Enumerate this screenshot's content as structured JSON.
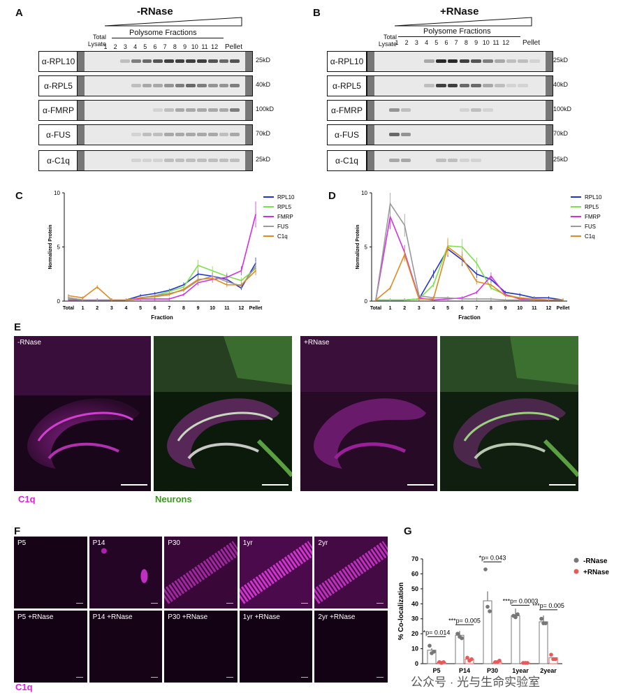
{
  "panels": {
    "A": {
      "letter": "A",
      "title": "-RNase",
      "total_lysate": "Total Lysate",
      "polysome_fractions": "Polysome Fractions",
      "lanes": [
        "1",
        "2",
        "3",
        "4",
        "5",
        "6",
        "7",
        "8",
        "9",
        "10",
        "11",
        "12"
      ],
      "pellet": "Pellet",
      "rows": [
        {
          "label": "α-RPL10",
          "kd": "25kD"
        },
        {
          "label": "α-RPL5",
          "kd": "40kD"
        },
        {
          "label": "α-FMRP",
          "kd": "100kD"
        },
        {
          "label": "α-FUS",
          "kd": "70kD"
        },
        {
          "label": "α-C1q",
          "kd": "25kD"
        }
      ]
    },
    "B": {
      "letter": "B",
      "title": "+RNase",
      "total_lysate": "Total Lysate",
      "polysome_fractions": "Polysome Fractions",
      "lanes": [
        "1",
        "2",
        "3",
        "4",
        "5",
        "6",
        "7",
        "8",
        "9",
        "10",
        "11",
        "12"
      ],
      "pellet": "Pellet",
      "rows": [
        {
          "label": "α-RPL10",
          "kd": "25kD"
        },
        {
          "label": "α-RPL5",
          "kd": "40kD"
        },
        {
          "label": "α-FMRP",
          "kd": "100kD"
        },
        {
          "label": "α-FUS",
          "kd": "70kD"
        },
        {
          "label": "α-C1q",
          "kd": "25kD"
        }
      ]
    },
    "E": {
      "letter": "E",
      "minus": "-RNase",
      "plus": "+RNase",
      "c1q": "C1q",
      "neurons": "Neurons"
    },
    "F": {
      "letter": "F",
      "top": [
        "P5",
        "P14",
        "P30",
        "1yr",
        "2yr"
      ],
      "bottom": [
        "P5 +RNase",
        "P14 +RNase",
        "P30 +RNase",
        "1yr +RNase",
        "2yr +RNase"
      ],
      "c1q": "C1q"
    },
    "G": {
      "letter": "G"
    }
  },
  "colors": {
    "RPL10": "#2233cc",
    "RPL5": "#7ee04a",
    "FMRP": "#d030e0",
    "FUS": "#9a9a9a",
    "C1q": "#e08a20",
    "c1q_text": "#e020e0",
    "neurons_text": "#3a9a20",
    "minus_rnase": "#777777",
    "plus_rnase": "#e85a5a"
  },
  "chart_data": [
    {
      "id": "C",
      "letter": "C",
      "type": "line",
      "ylabel": "Normalized Protein",
      "xlabel": "Fraction",
      "categories": [
        "Total",
        "1",
        "2",
        "3",
        "4",
        "5",
        "6",
        "7",
        "8",
        "9",
        "10",
        "11",
        "12",
        "Pellet"
      ],
      "ylim": [
        0,
        10
      ],
      "yticks": [
        0,
        5,
        10
      ],
      "legend": "top-right",
      "series": [
        {
          "name": "RPL10",
          "color": "#2233cc",
          "values": [
            0.3,
            0.1,
            0.1,
            0.1,
            0.1,
            0.5,
            0.7,
            1.0,
            1.5,
            2.5,
            2.3,
            2.0,
            1.2,
            3.5
          ]
        },
        {
          "name": "RPL5",
          "color": "#7ee04a",
          "values": [
            0.2,
            0.1,
            0.1,
            0.1,
            0.1,
            0.3,
            0.5,
            0.9,
            1.3,
            3.3,
            2.8,
            2.3,
            1.9,
            3.0
          ]
        },
        {
          "name": "FMRP",
          "color": "#d030e0",
          "values": [
            0.1,
            0.1,
            0.1,
            0.1,
            0.1,
            0.2,
            0.2,
            0.2,
            0.6,
            1.7,
            2.0,
            2.2,
            2.8,
            8.0
          ]
        },
        {
          "name": "FUS",
          "color": "#9a9a9a",
          "values": [
            0.3,
            0.1,
            0.1,
            0.1,
            0.1,
            0.3,
            0.5,
            0.7,
            1.0,
            1.9,
            2.3,
            1.8,
            1.4,
            3.2
          ]
        },
        {
          "name": "C1q",
          "color": "#e08a20",
          "values": [
            0.5,
            0.3,
            1.3,
            0.1,
            0.1,
            0.3,
            0.4,
            0.6,
            1.1,
            2.0,
            2.1,
            1.5,
            1.5,
            2.8
          ]
        }
      ]
    },
    {
      "id": "D",
      "letter": "D",
      "type": "line",
      "ylabel": "Normalized Protein",
      "xlabel": "Fraction",
      "categories": [
        "Total",
        "1",
        "2",
        "3",
        "4",
        "5",
        "6",
        "7",
        "8",
        "9",
        "10",
        "11",
        "12",
        "Pellet"
      ],
      "ylim": [
        0,
        10
      ],
      "yticks": [
        0,
        5,
        10
      ],
      "legend": "top-right",
      "series": [
        {
          "name": "RPL10",
          "color": "#2233cc",
          "values": [
            0.1,
            0.1,
            0.1,
            0.2,
            2.5,
            4.8,
            3.8,
            2.5,
            2.0,
            0.8,
            0.6,
            0.3,
            0.3,
            0.1
          ]
        },
        {
          "name": "RPL5",
          "color": "#7ee04a",
          "values": [
            0.1,
            0.1,
            0.1,
            0.2,
            1.5,
            5.1,
            5.0,
            3.5,
            1.2,
            0.6,
            0.3,
            0.2,
            0.1,
            0.1
          ]
        },
        {
          "name": "FMRP",
          "color": "#d030e0",
          "values": [
            0.1,
            7.8,
            4.5,
            0.3,
            0.1,
            0.2,
            0.3,
            0.8,
            2.3,
            0.6,
            0.2,
            0.1,
            0.1,
            0.1
          ]
        },
        {
          "name": "FUS",
          "color": "#9a9a9a",
          "values": [
            0.1,
            9.0,
            7.0,
            0.5,
            0.3,
            0.3,
            0.2,
            0.2,
            0.2,
            0.1,
            0.1,
            0.1,
            0.1,
            0.1
          ]
        },
        {
          "name": "C1q",
          "color": "#e08a20",
          "values": [
            0.1,
            1.2,
            4.3,
            0.2,
            0.2,
            5.0,
            4.0,
            1.8,
            1.5,
            0.5,
            0.3,
            0.2,
            0.1,
            0.1
          ]
        }
      ]
    },
    {
      "id": "G",
      "letter": "G",
      "type": "bar",
      "ylabel": "% Co-localization",
      "categories": [
        "P5",
        "P14",
        "P30",
        "1year",
        "2year"
      ],
      "ylim": [
        0,
        70
      ],
      "yticks": [
        0,
        10,
        20,
        30,
        40,
        50,
        60,
        70
      ],
      "legend": "top-right",
      "series": [
        {
          "name": "-RNase",
          "color": "#777777",
          "values": [
            9,
            19,
            42,
            32,
            28
          ]
        },
        {
          "name": "+RNase",
          "color": "#e85a5a",
          "values": [
            1,
            3,
            1,
            0.5,
            4
          ]
        }
      ],
      "points": {
        "-RNase": [
          [
            12,
            7,
            8
          ],
          [
            20,
            18,
            17
          ],
          [
            63,
            38,
            35
          ],
          [
            32,
            31,
            33
          ],
          [
            30,
            27,
            27
          ]
        ],
        "+RNase": [
          [
            1,
            0.5,
            1
          ],
          [
            4,
            2,
            3
          ],
          [
            1,
            1,
            2
          ],
          [
            0.5,
            0.5,
            0.5
          ],
          [
            6,
            3,
            3
          ]
        ]
      },
      "annotations": [
        "*p= 0.014",
        "***p= 0.005",
        "*p= 0.043",
        "***p= 0.0003",
        "***p= 0.005"
      ]
    }
  ],
  "watermark": "公众号 · 光与生命实验室"
}
